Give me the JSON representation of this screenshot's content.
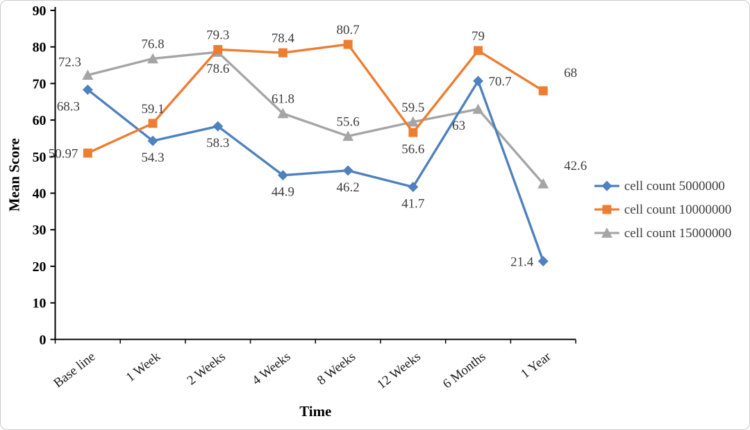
{
  "chart_data": {
    "type": "line",
    "title": "",
    "xlabel": "Time",
    "ylabel": "Mean Score",
    "ylim": [
      0,
      90
    ],
    "yticks": [
      0,
      10,
      20,
      30,
      40,
      50,
      60,
      70,
      80,
      90
    ],
    "grid": false,
    "legend_position": "right",
    "categories": [
      "Base line",
      "1 Week",
      "2 Weeks",
      "4 Weeks",
      "8 Weeks",
      "12 Weeks",
      "6 Months",
      "1 Year"
    ],
    "series": [
      {
        "name": "cell count 5000000",
        "color": "#4E81BD",
        "marker": "diamond",
        "values": [
          68.3,
          54.3,
          58.3,
          44.9,
          46.2,
          41.7,
          70.7,
          21.4
        ],
        "label_pos": [
          "below-left",
          "below",
          "below",
          "below",
          "below",
          "below",
          "right",
          "left"
        ]
      },
      {
        "name": "cell count 10000000",
        "color": "#ED7D31",
        "marker": "square",
        "values": [
          50.97,
          59.1,
          79.3,
          78.4,
          80.7,
          56.6,
          79,
          68
        ],
        "label_pos": [
          "left",
          "above",
          "above",
          "above",
          "above",
          "below",
          "above",
          "above-right"
        ]
      },
      {
        "name": "cell count 15000000",
        "color": "#A5A5A5",
        "marker": "triangle",
        "values": [
          72.3,
          76.8,
          78.6,
          61.8,
          55.6,
          59.5,
          63,
          42.6
        ],
        "label_pos": [
          "above-left",
          "above",
          "below",
          "above",
          "above",
          "above",
          "below-left",
          "above-right"
        ]
      }
    ]
  }
}
